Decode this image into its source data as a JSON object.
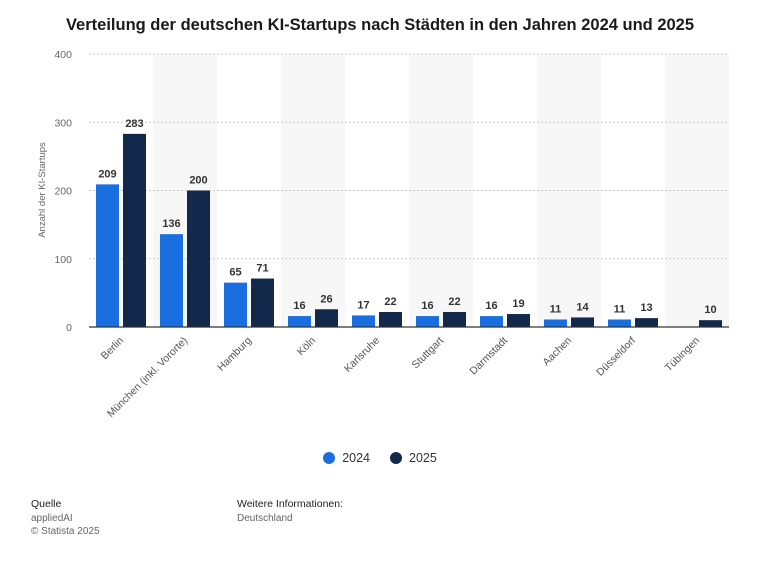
{
  "chart_data": {
    "type": "bar",
    "title": "Verteilung der deutschen KI-Startups nach Städten in den Jahren 2024 und 2025",
    "ylabel": "Anzahl der KI-Startups",
    "xlabel": "",
    "ylim": [
      0,
      400
    ],
    "yticks": [
      0,
      100,
      200,
      300,
      400
    ],
    "grid": true,
    "legend_position": "bottom",
    "categories": [
      "Berlin",
      "München (inkl. Vororte)",
      "Hamburg",
      "Köln",
      "Karlsruhe",
      "Stuttgart",
      "Darmstadt",
      "Aachen",
      "Düsseldorf",
      "Tübingen"
    ],
    "series": [
      {
        "name": "2024",
        "color": "#1a6fe0",
        "values": [
          209,
          136,
          65,
          16,
          17,
          16,
          16,
          11,
          11,
          null
        ]
      },
      {
        "name": "2025",
        "color": "#13294b",
        "values": [
          283,
          200,
          71,
          26,
          22,
          22,
          19,
          14,
          13,
          10
        ]
      }
    ]
  },
  "footer": {
    "source_heading": "Quelle",
    "source_name": "appliedAI",
    "copyright": "© Statista 2025",
    "info_heading": "Weitere Informationen:",
    "info_text": "Deutschland"
  }
}
